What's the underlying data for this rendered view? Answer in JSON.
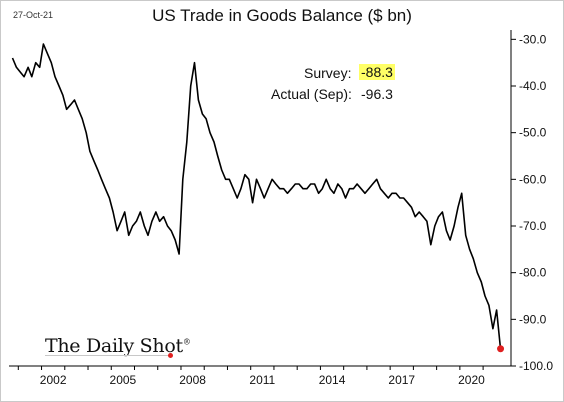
{
  "date_stamp": "27-Oct-21",
  "brand": "The Daily Shot",
  "brand_mark": "®",
  "annotations": {
    "survey_label": "Survey:",
    "survey_value": "-88.3",
    "actual_label": "Actual (Sep):",
    "actual_value": "-96.3"
  },
  "colors": {
    "line": "#000000",
    "highlight": "#ffff66",
    "last_point": "#e02020"
  },
  "chart_data": {
    "type": "line",
    "title": "US Trade in Goods Balance ($ bn)",
    "xlabel": "",
    "ylabel": "",
    "xlim": [
      2000.6,
      2022.2
    ],
    "ylim": [
      -100,
      -28
    ],
    "yticks": [
      -30,
      -40,
      -50,
      -60,
      -70,
      -80,
      -90,
      -100
    ],
    "ytick_labels": [
      "-30.0",
      "-40.0",
      "-50.0",
      "-60.0",
      "-70.0",
      "-80.0",
      "-90.0",
      "-100.0"
    ],
    "xticks": [
      2002,
      2005,
      2008,
      2011,
      2014,
      2017,
      2020
    ],
    "xtick_labels": [
      "2002",
      "2005",
      "2008",
      "2011",
      "2014",
      "2017",
      "2020"
    ],
    "y_axis_side": "right",
    "grid": false,
    "legend": "none",
    "series": [
      {
        "x": [
          2000.75,
          2000.92,
          2001.08,
          2001.25,
          2001.42,
          2001.58,
          2001.75,
          2001.92,
          2002.08,
          2002.25,
          2002.42,
          2002.58,
          2002.75,
          2002.92,
          2003.08,
          2003.25,
          2003.42,
          2003.58,
          2003.75,
          2003.92,
          2004.08,
          2004.25,
          2004.42,
          2004.58,
          2004.75,
          2004.92,
          2005.08,
          2005.25,
          2005.42,
          2005.58,
          2005.75,
          2005.92,
          2006.08,
          2006.25,
          2006.42,
          2006.58,
          2006.75,
          2006.92,
          2007.08,
          2007.25,
          2007.42,
          2007.58,
          2007.75,
          2007.92,
          2008.08,
          2008.25,
          2008.42,
          2008.58,
          2008.75,
          2008.92,
          2009.08,
          2009.25,
          2009.42,
          2009.58,
          2009.75,
          2009.92,
          2010.08,
          2010.25,
          2010.42,
          2010.58,
          2010.75,
          2010.92,
          2011.08,
          2011.25,
          2011.42,
          2011.58,
          2011.75,
          2011.92,
          2012.08,
          2012.25,
          2012.42,
          2012.58,
          2012.75,
          2012.92,
          2013.08,
          2013.25,
          2013.42,
          2013.58,
          2013.75,
          2013.92,
          2014.08,
          2014.25,
          2014.42,
          2014.58,
          2014.75,
          2014.92,
          2015.08,
          2015.25,
          2015.42,
          2015.58,
          2015.75,
          2015.92,
          2016.08,
          2016.25,
          2016.42,
          2016.58,
          2016.75,
          2016.92,
          2017.08,
          2017.25,
          2017.42,
          2017.58,
          2017.75,
          2017.92,
          2018.08,
          2018.25,
          2018.42,
          2018.58,
          2018.75,
          2018.92,
          2019.08,
          2019.25,
          2019.42,
          2019.58,
          2019.75,
          2019.92,
          2020.08,
          2020.25,
          2020.42,
          2020.58,
          2020.75,
          2020.92,
          2021.08,
          2021.25,
          2021.42,
          2021.58,
          2021.75
        ],
        "y": [
          -34,
          -36,
          -37,
          -38,
          -36,
          -38,
          -35,
          -36,
          -31,
          -33,
          -35,
          -38,
          -40,
          -42,
          -45,
          -44,
          -43,
          -45,
          -47,
          -50,
          -54,
          -56,
          -58,
          -60,
          -62,
          -64,
          -67,
          -71,
          -69,
          -67,
          -72,
          -70,
          -69,
          -67,
          -70,
          -72,
          -69,
          -67,
          -69,
          -68,
          -70,
          -71,
          -73,
          -76,
          -60,
          -52,
          -40,
          -35,
          -43,
          -46,
          -47,
          -50,
          -52,
          -55,
          -58,
          -60,
          -60,
          -62,
          -64,
          -62,
          -59,
          -60,
          -65,
          -60,
          -62,
          -64,
          -62,
          -60,
          -61,
          -62,
          -62,
          -63,
          -62,
          -61,
          -61,
          -62,
          -62,
          -61,
          -61,
          -63,
          -62,
          -60,
          -62,
          -63,
          -61,
          -62,
          -64,
          -62,
          -62,
          -61,
          -62,
          -63,
          -62,
          -61,
          -60,
          -62,
          -63,
          -64,
          -63,
          -63,
          -64,
          -64,
          -65,
          -66,
          -68,
          -67,
          -68,
          -69,
          -74,
          -70,
          -68,
          -67,
          -71,
          -73,
          -70,
          -66,
          -63,
          -72,
          -75,
          -77,
          -80,
          -82,
          -85,
          -87,
          -92,
          -88,
          -96.3
        ]
      }
    ],
    "last_point": {
      "x": 2021.75,
      "y": -96.3
    }
  }
}
